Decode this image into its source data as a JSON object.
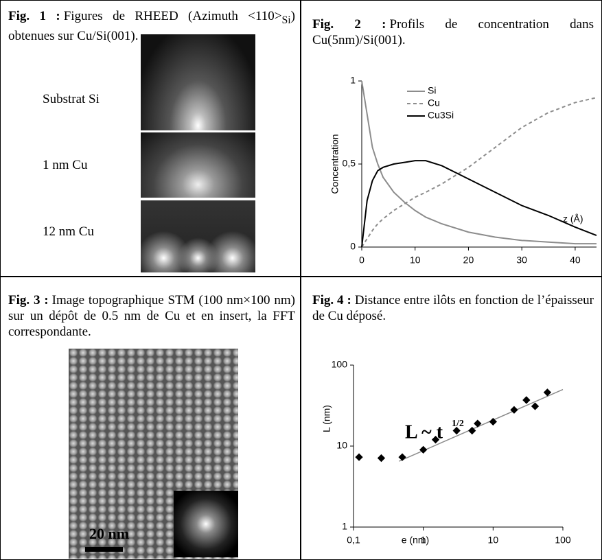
{
  "fig1": {
    "caption": {
      "label": "Fig. 1 :",
      "text": "Figures de RHEED (Azimuth <110>",
      "sub": "Si",
      "text_end": ") obtenues sur Cu/Si(001)."
    },
    "labels": [
      "Substrat Si",
      "1 nm Cu",
      "12 nm Cu"
    ]
  },
  "fig2": {
    "caption": {
      "label": "Fig. 2 :",
      "text": "Profils de concentration dans Cu(5nm)/Si(001)."
    },
    "chart_data": {
      "type": "line",
      "y_label": "Concentration",
      "annotation": "z (Å)",
      "x": [
        0,
        1,
        2,
        3,
        4,
        6,
        8,
        10,
        12,
        15,
        20,
        25,
        30,
        35,
        40,
        44
      ],
      "series": [
        {
          "name": "Si",
          "color": "#8c8c8c",
          "dashed": false,
          "values": [
            1,
            0.8,
            0.6,
            0.5,
            0.42,
            0.33,
            0.27,
            0.22,
            0.18,
            0.14,
            0.09,
            0.06,
            0.04,
            0.03,
            0.02,
            0.02
          ]
        },
        {
          "name": "Cu",
          "color": "#8c8c8c",
          "dashed": true,
          "values": [
            0,
            0.05,
            0.1,
            0.14,
            0.17,
            0.22,
            0.26,
            0.3,
            0.33,
            0.38,
            0.48,
            0.6,
            0.72,
            0.81,
            0.87,
            0.9
          ]
        },
        {
          "name": "Cu3Si",
          "color": "#000000",
          "dashed": false,
          "values": [
            0,
            0.28,
            0.4,
            0.46,
            0.48,
            0.5,
            0.51,
            0.52,
            0.52,
            0.49,
            0.41,
            0.33,
            0.25,
            0.19,
            0.12,
            0.07
          ]
        }
      ],
      "xlim": [
        0,
        44
      ],
      "ylim": [
        0,
        1
      ],
      "xticks": [
        0,
        10,
        20,
        30,
        40
      ],
      "yticks": [
        0,
        {
          "value": 0.5,
          "label": "0,5"
        },
        1
      ]
    }
  },
  "fig3": {
    "caption": {
      "label": "Fig. 3 :",
      "text": "Image topographique STM (100 nm×100 nm) sur un dépôt de 0.5 nm de Cu et en insert, la FFT correspondante."
    },
    "scale_bar": "20 nm"
  },
  "fig4": {
    "caption": {
      "label": "Fig. 4 :",
      "text": "Distance entre ilôts en fonction de l’épaisseur de Cu déposé."
    },
    "chart_data": {
      "type": "scatter",
      "x_label": "e (nm)",
      "y_label": "L (nm)",
      "annotation": "L ~ t",
      "annotation_exponent": "1/2",
      "x": [
        0.12,
        0.25,
        0.5,
        1,
        1.5,
        3,
        5,
        6,
        10,
        20,
        30,
        40,
        60
      ],
      "values": [
        7.3,
        7.1,
        7.3,
        9,
        12,
        15.5,
        15.5,
        19,
        20,
        28,
        37,
        31,
        46
      ],
      "color": "#000000",
      "fit_line": {
        "color": "#8c8c8c",
        "x": [
          0.45,
          100
        ],
        "y": [
          6.5,
          50
        ]
      },
      "log_x": true,
      "log_y": true,
      "xlim": [
        0.1,
        100
      ],
      "ylim": [
        1,
        100
      ],
      "xticks": [
        {
          "value": 0.1,
          "label": "0,1"
        },
        1,
        10,
        100
      ],
      "yticks": [
        1,
        10,
        100
      ]
    }
  }
}
